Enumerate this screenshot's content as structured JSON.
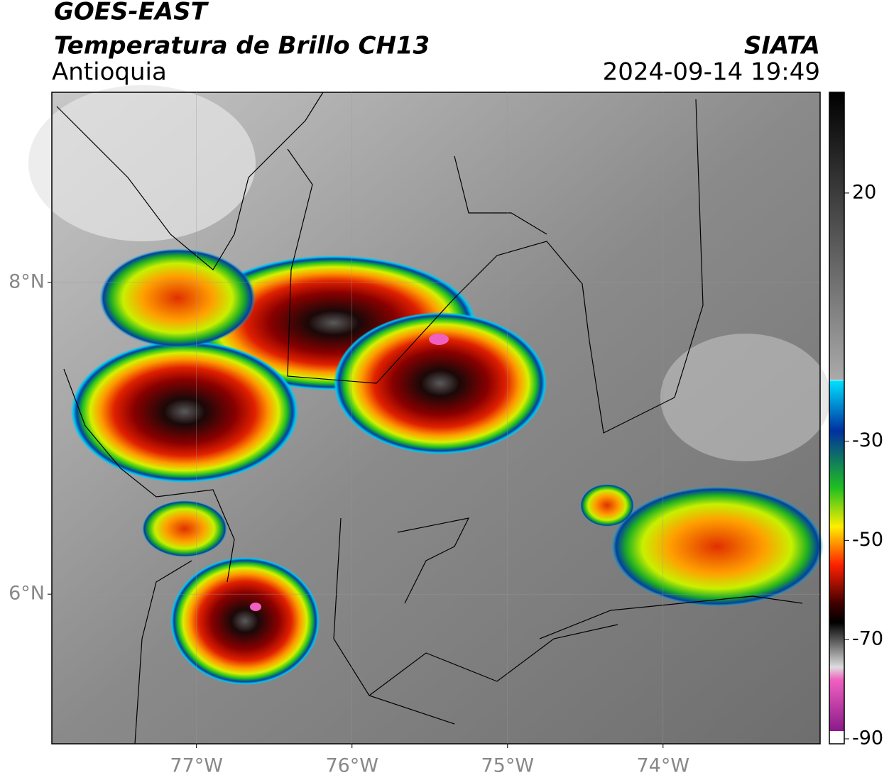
{
  "header": {
    "title": "GOES-EAST",
    "subtitle": "Temperatura de Brillo CH13",
    "region": "Antioquia",
    "source": "SIATA",
    "datetime": "2024-09-14 19:49"
  },
  "map": {
    "xlim": [
      -77.93,
      -72.99
    ],
    "ylim": [
      5.04,
      9.22
    ],
    "xticks": [
      {
        "value": -77,
        "label": "77°W"
      },
      {
        "value": -76,
        "label": "76°W"
      },
      {
        "value": -75,
        "label": "75°W"
      },
      {
        "value": -74,
        "label": "74°W"
      }
    ],
    "yticks": [
      {
        "value": 6,
        "label": "6°N"
      },
      {
        "value": 8,
        "label": "8°N"
      }
    ],
    "grid": true
  },
  "colorbar": {
    "lim": [
      -91,
      40.3
    ],
    "ticks": [
      20,
      -30,
      -50,
      -70,
      -90
    ]
  }
}
